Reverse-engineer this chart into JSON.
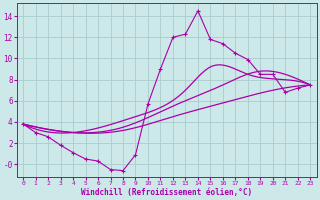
{
  "xlabel": "Windchill (Refroidissement éolien,°C)",
  "bg_color": "#cde8e8",
  "line_color": "#aa00aa",
  "grid_color": "#aacccc",
  "xlim": [
    -0.5,
    23.5
  ],
  "ylim": [
    -1.2,
    15.2
  ],
  "xticks": [
    0,
    1,
    2,
    3,
    4,
    5,
    6,
    7,
    8,
    9,
    10,
    11,
    12,
    13,
    14,
    15,
    16,
    17,
    18,
    19,
    20,
    21,
    22,
    23
  ],
  "yticks": [
    0,
    2,
    4,
    6,
    8,
    10,
    12,
    14
  ],
  "ytick_labels": [
    "-0",
    "2",
    "4",
    "6",
    "8",
    "10",
    "12",
    "14"
  ],
  "series1_x": [
    0,
    1,
    2,
    3,
    4,
    5,
    6,
    7,
    8,
    9,
    10,
    11,
    12,
    13,
    14,
    15,
    16,
    17,
    18,
    19,
    20,
    21,
    22,
    23
  ],
  "series1_y": [
    3.8,
    3.0,
    2.6,
    1.8,
    1.1,
    0.5,
    0.3,
    -0.5,
    -0.6,
    0.9,
    5.7,
    9.0,
    12.0,
    12.3,
    14.5,
    11.8,
    11.4,
    10.5,
    9.9,
    8.5,
    8.5,
    6.8,
    7.2,
    7.5
  ],
  "smooth1_x": [
    0,
    4,
    8,
    12,
    16,
    20,
    23
  ],
  "smooth1_y": [
    3.8,
    3.0,
    3.2,
    4.5,
    5.8,
    7.0,
    7.5
  ],
  "smooth2_x": [
    0,
    4,
    8,
    12,
    16,
    19,
    21,
    23
  ],
  "smooth2_y": [
    3.8,
    3.0,
    3.5,
    5.5,
    7.5,
    8.8,
    8.5,
    7.5
  ],
  "smooth3_x": [
    0,
    4,
    9,
    13,
    15,
    18,
    21,
    23
  ],
  "smooth3_y": [
    3.8,
    3.0,
    4.5,
    7.0,
    9.2,
    8.5,
    8.0,
    7.5
  ]
}
